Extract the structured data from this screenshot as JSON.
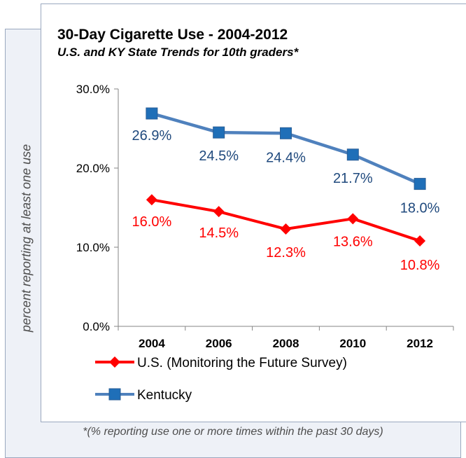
{
  "chart_data": {
    "type": "line",
    "title": "30-Day Cigarette Use - 2004-2012",
    "subtitle": "U.S. and KY State Trends for 10th graders*",
    "ylabel": "percent reporting at least one use",
    "xlabel": "",
    "categories": [
      "2004",
      "2006",
      "2008",
      "2010",
      "2012"
    ],
    "ylim": [
      0,
      30
    ],
    "yticks": [
      0,
      10,
      20,
      30
    ],
    "ytick_labels": [
      "0.0%",
      "10.0%",
      "20.0%",
      "30.0%"
    ],
    "series": [
      {
        "name": "U.S. (Monitoring the Future Survey)",
        "values": [
          16.0,
          14.5,
          12.3,
          13.6,
          10.8
        ],
        "labels": [
          "16.0%",
          "14.5%",
          "12.3%",
          "13.6%",
          "10.8%"
        ],
        "color": "#ff0000",
        "label_color": "#ff0000",
        "marker": "diamond"
      },
      {
        "name": "Kentucky",
        "values": [
          26.9,
          24.5,
          24.4,
          21.7,
          18.0
        ],
        "labels": [
          "26.9%",
          "24.5%",
          "24.4%",
          "21.7%",
          "18.0%"
        ],
        "color": "#4f81bd",
        "label_color": "#1f497d",
        "marker": "square"
      }
    ],
    "grid": false,
    "legend_position": "bottom-left"
  },
  "footnote": "*(% reporting use one or more times within the past 30 days)"
}
